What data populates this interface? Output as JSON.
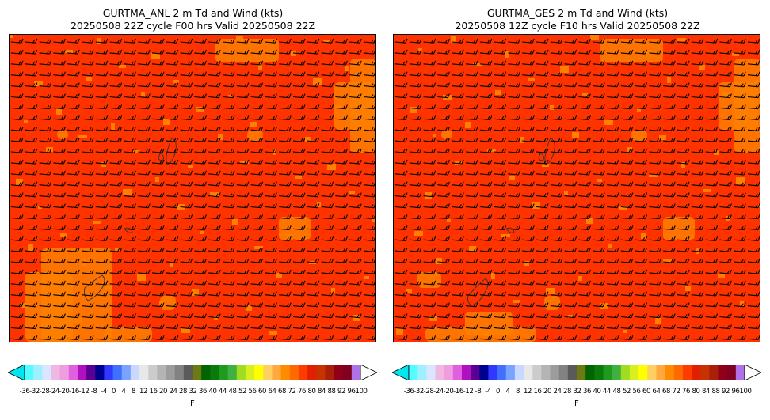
{
  "panels": [
    {
      "title_line1": "GURTMA_ANL 2 m Td and Wind (kts)",
      "title_line2": "20250508 22Z cycle F00 hrs Valid 20250508 22Z",
      "field_color": "#ff3300",
      "patch_color": "#ff8000"
    },
    {
      "title_line1": "GURTMA_GES 2 m Td and Wind (kts)",
      "title_line2": "20250508 12Z cycle F10 hrs Valid 20250508 22Z",
      "field_color": "#ff3300",
      "patch_color": "#ff8000"
    }
  ],
  "colorbar": {
    "unit": "F",
    "min_arrow_color": "#00e5ee",
    "max_arrow_color": "#ffffff",
    "colors": [
      "#54fbff",
      "#9ef0ff",
      "#d8e6ff",
      "#f0b8e0",
      "#f09ce0",
      "#e060e0",
      "#b010c0",
      "#5a0090",
      "#000090",
      "#3038ff",
      "#4070ff",
      "#7aa2ff",
      "#c8d8ff",
      "#e8e8e8",
      "#cccccc",
      "#b4b4b4",
      "#9c9c9c",
      "#828282",
      "#5a5a5a",
      "#6e7a10",
      "#006400",
      "#0a7a0a",
      "#1e9a1e",
      "#40b040",
      "#a0dc20",
      "#d8f020",
      "#ffff00",
      "#ffd060",
      "#ffaa40",
      "#ff8c00",
      "#ff6a00",
      "#ff3c00",
      "#e02000",
      "#c83200",
      "#a82008",
      "#900018",
      "#800020",
      "#b070e8"
    ],
    "tick_labels": [
      "-36",
      "-32",
      "-28",
      "-24",
      "-20",
      "-16",
      "-12",
      "-8",
      "-4",
      "0",
      "4",
      "8",
      "12",
      "16",
      "20",
      "24",
      "28",
      "32",
      "36",
      "40",
      "44",
      "48",
      "52",
      "56",
      "60",
      "64",
      "68",
      "72",
      "76",
      "80",
      "84",
      "88",
      "92",
      "96",
      "100"
    ]
  }
}
